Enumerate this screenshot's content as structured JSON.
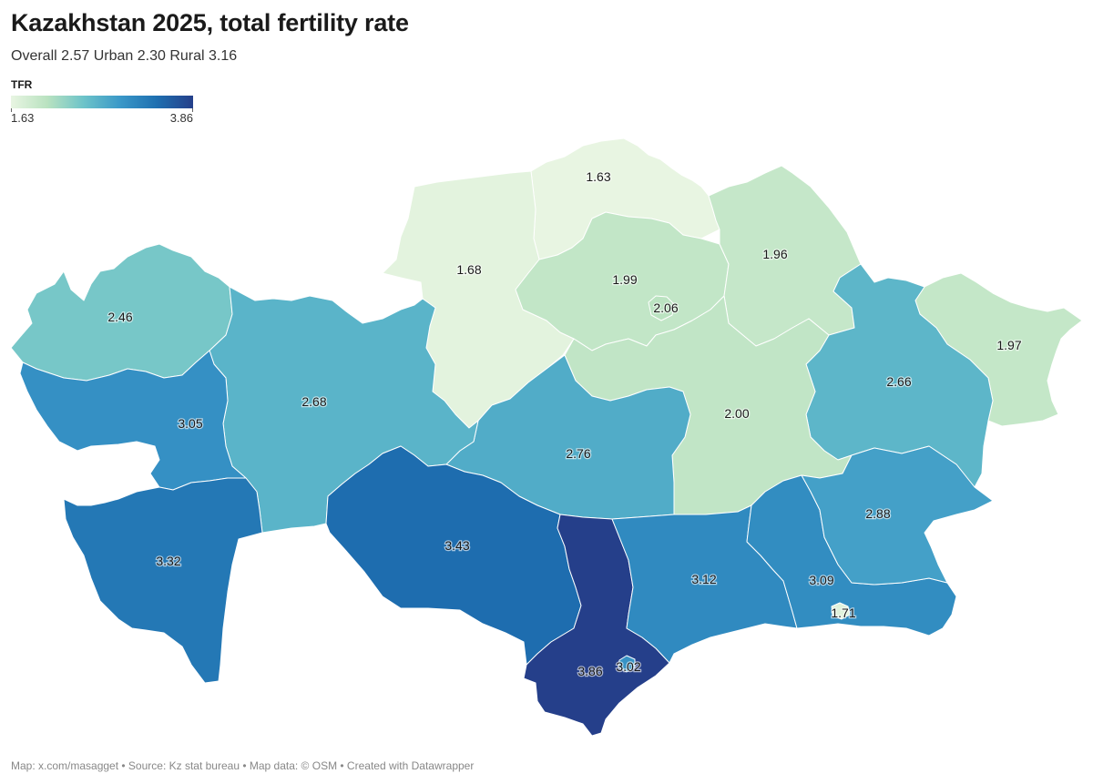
{
  "header": {
    "title": "Kazakhstan 2025, total fertility rate",
    "subtitle": "Overall 2.57 Urban 2.30 Rural 3.16"
  },
  "legend": {
    "title": "TFR",
    "min_label": "1.63",
    "max_label": "3.86",
    "min_value": 1.63,
    "max_value": 3.86,
    "colors": [
      "#e8f5e2",
      "#b9e2c0",
      "#6cc3c9",
      "#3a98c8",
      "#1e6fb0",
      "#253f8a"
    ]
  },
  "regions": [
    {
      "key": "north_kazakhstan",
      "label": "1.63",
      "value": 1.63
    },
    {
      "key": "kostanay",
      "label": "1.68",
      "value": 1.68
    },
    {
      "key": "akmola",
      "label": "1.99",
      "value": 1.99
    },
    {
      "key": "astana",
      "label": "2.06",
      "value": 2.06
    },
    {
      "key": "pavlodar",
      "label": "1.96",
      "value": 1.96
    },
    {
      "key": "east_kazakhstan",
      "label": "1.97",
      "value": 1.97
    },
    {
      "key": "west_kazakhstan",
      "label": "2.46",
      "value": 2.46
    },
    {
      "key": "aktobe",
      "label": "2.68",
      "value": 2.68
    },
    {
      "key": "atyrau",
      "label": "3.05",
      "value": 3.05
    },
    {
      "key": "mangystau",
      "label": "3.32",
      "value": 3.32
    },
    {
      "key": "kyzylorda",
      "label": "3.43",
      "value": 3.43
    },
    {
      "key": "ulytau",
      "label": "2.76",
      "value": 2.76
    },
    {
      "key": "karaganda",
      "label": "2.00",
      "value": 2.0
    },
    {
      "key": "abai",
      "label": "2.66",
      "value": 2.66
    },
    {
      "key": "zhetysu",
      "label": "2.88",
      "value": 2.88
    },
    {
      "key": "zhambyl",
      "label": "3.12",
      "value": 3.12
    },
    {
      "key": "almaty_region",
      "label": "3.09",
      "value": 3.09
    },
    {
      "key": "almaty_city",
      "label": "1.71",
      "value": 1.71
    },
    {
      "key": "turkistan",
      "label": "3.86",
      "value": 3.86
    },
    {
      "key": "shymkent",
      "label": "3.02",
      "value": 3.02
    }
  ],
  "footer": {
    "credits": "Map: x.com/masagget • Source: Kz stat bureau • Map data: © OSM  • Created with Datawrapper"
  }
}
